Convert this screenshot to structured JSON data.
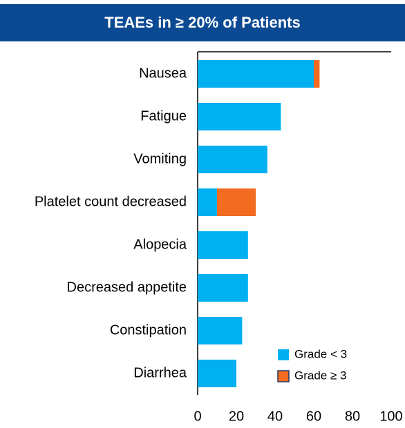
{
  "chart_data": {
    "type": "stacked_barh",
    "title": "TEAEs in ≥ 20% of Patients",
    "categories": [
      "Nausea",
      "Fatigue",
      "Vomiting",
      "Platelet count decreased",
      "Alopecia",
      "Decreased appetite",
      "Constipation",
      "Diarrhea"
    ],
    "series": [
      {
        "name": "Grade < 3",
        "color": "#00b0f0",
        "values": [
          60,
          43,
          36,
          10,
          26,
          26,
          23,
          20
        ]
      },
      {
        "name": "Grade ≥ 3",
        "color": "#f26b21",
        "values": [
          3,
          null,
          null,
          20,
          null,
          null,
          null,
          null
        ]
      }
    ],
    "xlim": [
      0,
      100
    ],
    "xticks": [
      0,
      20,
      40,
      60,
      80,
      100
    ],
    "legend": "lower right"
  }
}
